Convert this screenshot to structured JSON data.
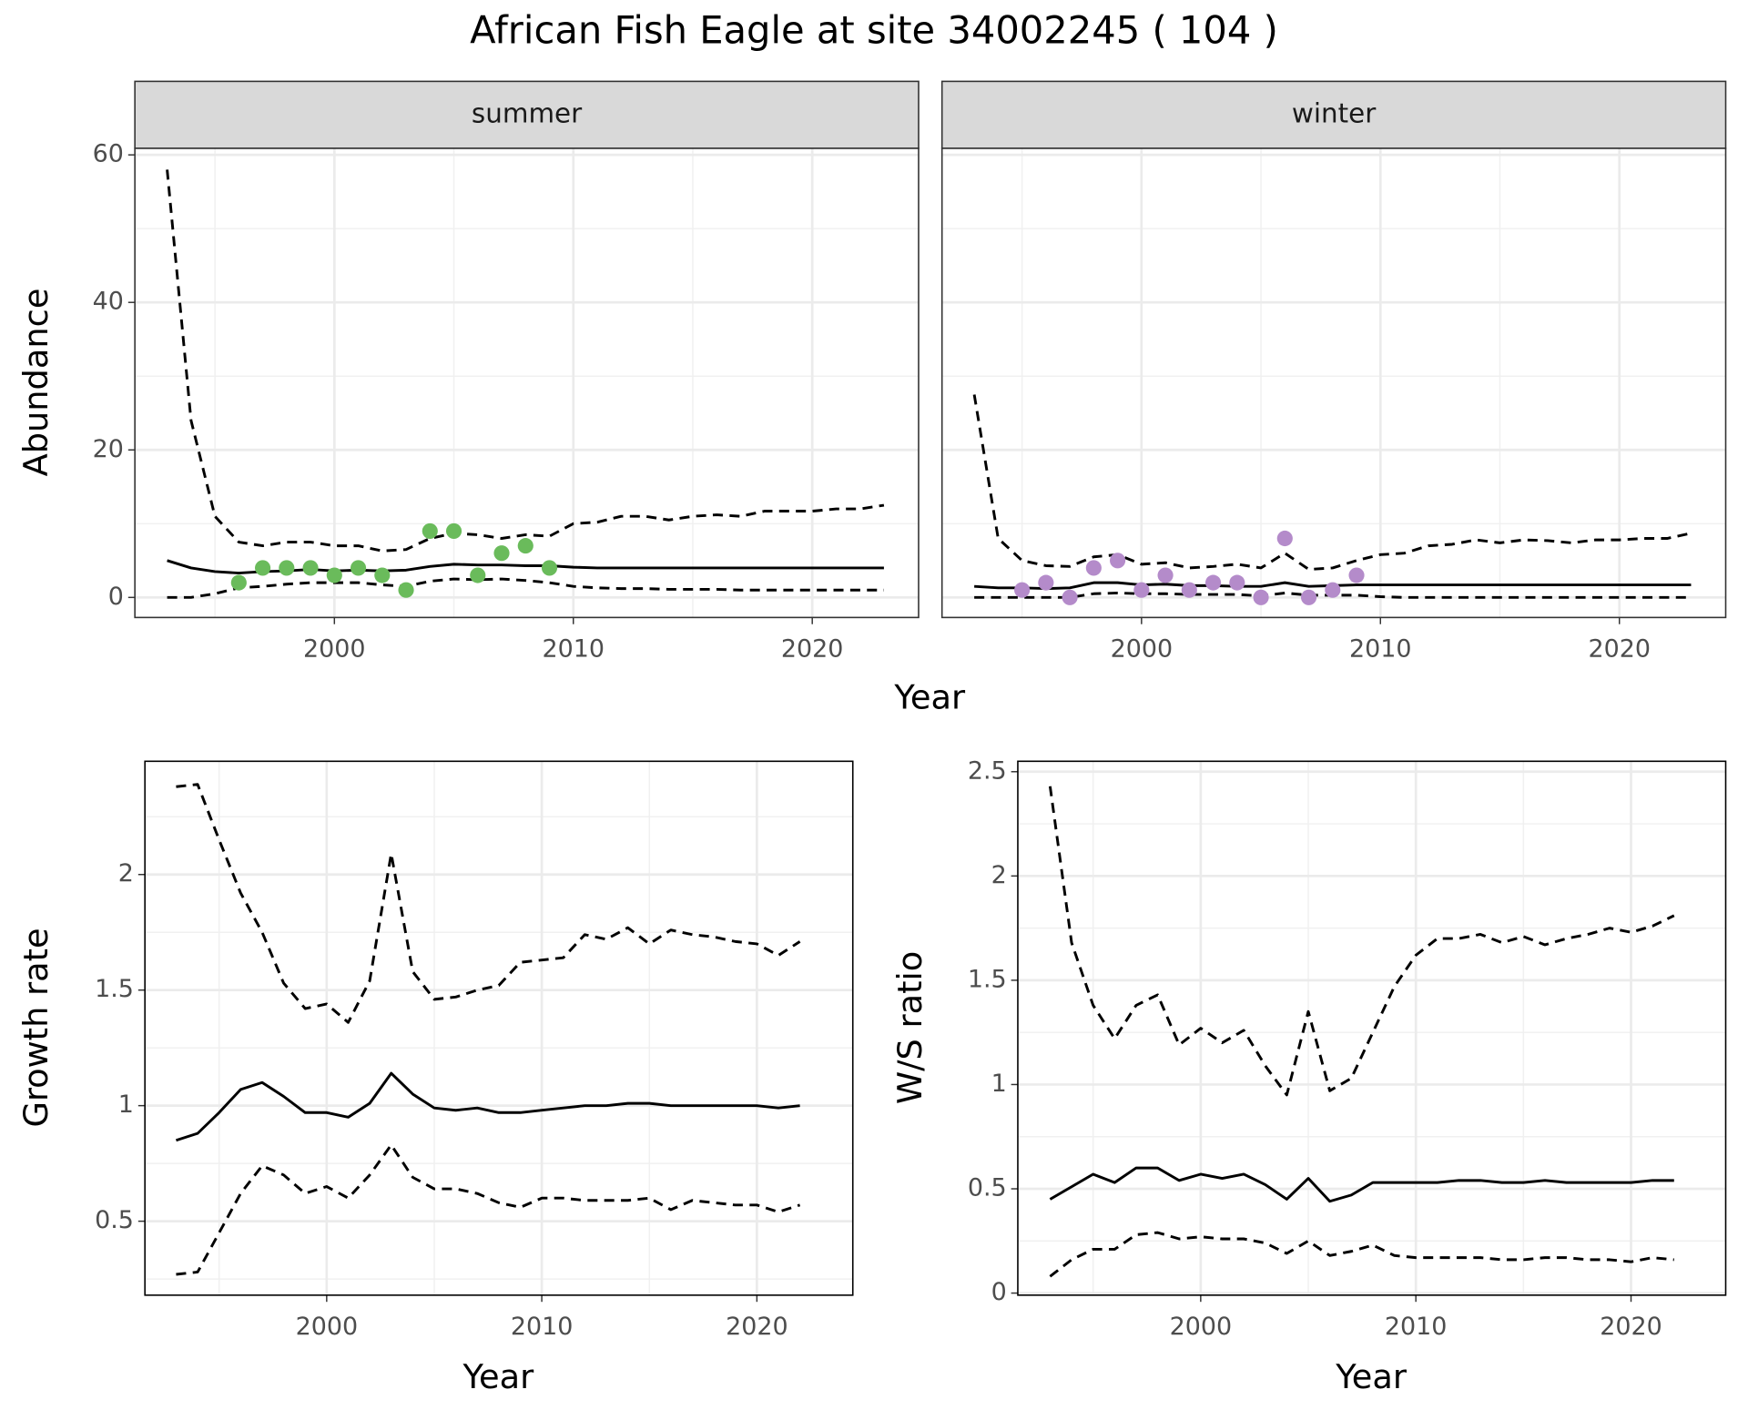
{
  "title": "African Fish Eagle at site 34002245 ( 104 )",
  "chart_data": [
    {
      "type": "facet-line",
      "xlabel": "Year",
      "ylabel": "Abundance",
      "xlim": [
        1991.65,
        2024.45
      ],
      "xticks": [
        2000,
        2010,
        2020
      ],
      "ylim": [
        -2.72,
        60.9
      ],
      "yticks": [
        0,
        20,
        40,
        60
      ],
      "grid": true,
      "minor_grid": true,
      "panels": [
        {
          "facet": "summer",
          "x": [
            1993,
            1994,
            1995,
            1996,
            1997,
            1998,
            1999,
            2000,
            2001,
            2002,
            2003,
            2004,
            2005,
            2006,
            2007,
            2008,
            2009,
            2010,
            2011,
            2012,
            2013,
            2014,
            2015,
            2016,
            2017,
            2018,
            2019,
            2020,
            2021,
            2022,
            2023
          ],
          "series": [
            {
              "color": "#000000",
              "style": "dashed",
              "values": [
                58,
                24,
                11,
                7.5,
                7,
                7.5,
                7.5,
                7,
                7,
                6.3,
                6.5,
                8,
                8.7,
                8.5,
                8,
                8.5,
                8.3,
                10,
                10.2,
                11,
                11,
                10.5,
                11,
                11.2,
                11,
                11.7,
                11.7,
                11.7,
                12,
                12,
                12.5
              ]
            },
            {
              "color": "#000000",
              "style": "solid",
              "values": [
                5,
                4,
                3.5,
                3.3,
                3.5,
                3.6,
                3.8,
                3.6,
                3.7,
                3.6,
                3.7,
                4.2,
                4.5,
                4.4,
                4.4,
                4.3,
                4.3,
                4.1,
                4,
                4,
                4,
                4,
                4,
                4,
                4,
                4,
                4,
                4,
                4,
                4,
                4
              ]
            },
            {
              "color": "#000000",
              "style": "dashed",
              "values": [
                0,
                0,
                0.5,
                1.3,
                1.5,
                1.8,
                2,
                2,
                2,
                1.7,
                1.5,
                2.2,
                2.5,
                2.4,
                2.5,
                2.3,
                2,
                1.5,
                1.3,
                1.2,
                1.2,
                1.1,
                1.1,
                1.1,
                1,
                1,
                1,
                1,
                1,
                1,
                1
              ]
            }
          ],
          "points_x": [
            1996,
            1997,
            1998,
            1999,
            2000,
            2001,
            2002,
            2003,
            2004,
            2005,
            2006,
            2007,
            2008,
            2009
          ],
          "points": [
            2,
            4,
            4,
            4,
            3,
            4,
            3,
            1,
            9,
            9,
            3,
            6,
            7,
            4
          ],
          "point_color": "#6abb5b"
        },
        {
          "facet": "winter",
          "x": [
            1993,
            1994,
            1995,
            1996,
            1997,
            1998,
            1999,
            2000,
            2001,
            2002,
            2003,
            2004,
            2005,
            2006,
            2007,
            2008,
            2009,
            2010,
            2011,
            2012,
            2013,
            2014,
            2015,
            2016,
            2017,
            2018,
            2019,
            2020,
            2021,
            2022,
            2023
          ],
          "series": [
            {
              "color": "#000000",
              "style": "dashed",
              "values": [
                27.5,
                8,
                5,
                4.3,
                4.2,
                5.5,
                5.8,
                4.5,
                4.7,
                4,
                4.2,
                4.5,
                4,
                6,
                3.8,
                4,
                5,
                5.8,
                6,
                7,
                7.2,
                7.8,
                7.4,
                7.8,
                7.7,
                7.4,
                7.8,
                7.8,
                8,
                8,
                8.7
              ]
            },
            {
              "color": "#000000",
              "style": "solid",
              "values": [
                1.5,
                1.3,
                1.3,
                1.2,
                1.3,
                2,
                2,
                1.7,
                1.8,
                1.6,
                1.6,
                1.5,
                1.5,
                2,
                1.5,
                1.6,
                1.7,
                1.7,
                1.7,
                1.7,
                1.7,
                1.7,
                1.7,
                1.7,
                1.7,
                1.7,
                1.7,
                1.7,
                1.7,
                1.7,
                1.7
              ]
            },
            {
              "color": "#000000",
              "style": "dashed",
              "values": [
                0,
                0,
                0,
                0,
                0,
                0.5,
                0.6,
                0.5,
                0.5,
                0.4,
                0.4,
                0.4,
                0.2,
                0.6,
                0.3,
                0.3,
                0.3,
                0.1,
                0,
                0,
                0,
                0,
                0,
                0,
                0,
                0,
                0,
                0,
                0,
                0,
                0
              ]
            }
          ],
          "points_x": [
            1995,
            1996,
            1997,
            1998,
            1999,
            2000,
            2001,
            2002,
            2003,
            2004,
            2005,
            2006,
            2007,
            2008,
            2009
          ],
          "points": [
            1,
            2,
            0,
            4,
            5,
            1,
            3,
            1,
            2,
            2,
            0,
            8,
            0,
            1,
            3
          ],
          "point_color": "#b48bca"
        }
      ]
    },
    {
      "type": "line",
      "xlabel": "Year",
      "ylabel": "Growth rate",
      "xlim": [
        1991.55,
        2024.46
      ],
      "xticks": [
        2000,
        2010,
        2020
      ],
      "ylim": [
        0.18,
        2.49
      ],
      "yticks": [
        0.5,
        1.0,
        1.5,
        2.0
      ],
      "grid": true,
      "minor_grid": true,
      "x": [
        1993,
        1994,
        1995,
        1996,
        1997,
        1998,
        1999,
        2000,
        2001,
        2002,
        2003,
        2004,
        2005,
        2006,
        2007,
        2008,
        2009,
        2010,
        2011,
        2012,
        2013,
        2014,
        2015,
        2016,
        2017,
        2018,
        2019,
        2020,
        2021,
        2022
      ],
      "series": [
        {
          "color": "#000000",
          "style": "dashed",
          "values": [
            2.38,
            2.39,
            2.15,
            1.92,
            1.75,
            1.53,
            1.42,
            1.44,
            1.36,
            1.54,
            2.09,
            1.58,
            1.46,
            1.47,
            1.5,
            1.52,
            1.62,
            1.63,
            1.64,
            1.74,
            1.72,
            1.77,
            1.7,
            1.76,
            1.74,
            1.73,
            1.71,
            1.7,
            1.65,
            1.71
          ]
        },
        {
          "color": "#000000",
          "style": "solid",
          "values": [
            0.85,
            0.88,
            0.97,
            1.07,
            1.1,
            1.04,
            0.97,
            0.97,
            0.95,
            1.01,
            1.14,
            1.05,
            0.99,
            0.98,
            0.99,
            0.97,
            0.97,
            0.98,
            0.99,
            1,
            1,
            1.01,
            1.01,
            1,
            1,
            1,
            1,
            1,
            0.99,
            1
          ]
        },
        {
          "color": "#000000",
          "style": "dashed",
          "values": [
            0.27,
            0.28,
            0.45,
            0.62,
            0.74,
            0.7,
            0.62,
            0.65,
            0.6,
            0.7,
            0.83,
            0.69,
            0.64,
            0.64,
            0.62,
            0.58,
            0.56,
            0.6,
            0.6,
            0.59,
            0.59,
            0.59,
            0.6,
            0.55,
            0.59,
            0.58,
            0.57,
            0.57,
            0.54,
            0.57
          ]
        }
      ]
    },
    {
      "type": "line",
      "xlabel": "Year",
      "ylabel": "W/S ratio",
      "xlim": [
        1991.5,
        2024.4
      ],
      "xticks": [
        2000,
        2010,
        2020
      ],
      "ylim": [
        -0.01,
        2.55
      ],
      "yticks": [
        0.0,
        0.5,
        1.0,
        1.5,
        2.0,
        2.5
      ],
      "grid": true,
      "minor_grid": true,
      "x": [
        1993,
        1994,
        1995,
        1996,
        1997,
        1998,
        1999,
        2000,
        2001,
        2002,
        2003,
        2004,
        2005,
        2006,
        2007,
        2008,
        2009,
        2010,
        2011,
        2012,
        2013,
        2014,
        2015,
        2016,
        2017,
        2018,
        2019,
        2020,
        2021,
        2022
      ],
      "series": [
        {
          "color": "#000000",
          "style": "dashed",
          "values": [
            2.43,
            1.68,
            1.38,
            1.22,
            1.38,
            1.43,
            1.19,
            1.27,
            1.2,
            1.26,
            1.09,
            0.95,
            1.35,
            0.97,
            1.03,
            1.25,
            1.47,
            1.62,
            1.7,
            1.7,
            1.72,
            1.68,
            1.71,
            1.67,
            1.7,
            1.72,
            1.75,
            1.73,
            1.76,
            1.81
          ]
        },
        {
          "color": "#000000",
          "style": "solid",
          "values": [
            0.45,
            0.51,
            0.57,
            0.53,
            0.6,
            0.6,
            0.54,
            0.57,
            0.55,
            0.57,
            0.52,
            0.45,
            0.55,
            0.44,
            0.47,
            0.53,
            0.53,
            0.53,
            0.53,
            0.54,
            0.54,
            0.53,
            0.53,
            0.54,
            0.53,
            0.53,
            0.53,
            0.53,
            0.54,
            0.54
          ]
        },
        {
          "color": "#000000",
          "style": "dashed",
          "values": [
            0.08,
            0.16,
            0.21,
            0.21,
            0.28,
            0.29,
            0.26,
            0.27,
            0.26,
            0.26,
            0.24,
            0.19,
            0.25,
            0.18,
            0.2,
            0.23,
            0.18,
            0.17,
            0.17,
            0.17,
            0.17,
            0.16,
            0.16,
            0.17,
            0.17,
            0.16,
            0.16,
            0.15,
            0.17,
            0.16
          ]
        }
      ]
    }
  ]
}
